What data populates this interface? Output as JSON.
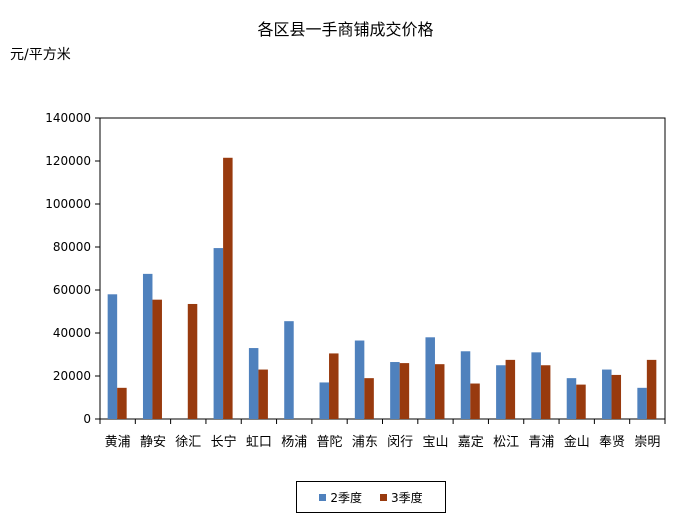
{
  "chart_data": {
    "type": "bar",
    "title": "各区县一手商铺成交价格",
    "ylabel": "元/平方米",
    "xlabel": "",
    "ylim": [
      0,
      140000
    ],
    "yticks": [
      0,
      20000,
      40000,
      60000,
      80000,
      100000,
      120000,
      140000
    ],
    "grid": false,
    "legend_position": "bottom",
    "categories": [
      "黄浦",
      "静安",
      "徐汇",
      "长宁",
      "虹口",
      "杨浦",
      "普陀",
      "浦东",
      "闵行",
      "宝山",
      "嘉定",
      "松江",
      "青浦",
      "金山",
      "奉贤",
      "崇明"
    ],
    "series": [
      {
        "name": "2季度",
        "color": "#4f81bd",
        "values": [
          58000,
          67500,
          0,
          79500,
          33000,
          45500,
          17000,
          36500,
          26500,
          38000,
          31500,
          25000,
          31000,
          19000,
          23000,
          14500
        ]
      },
      {
        "name": "3季度",
        "color": "#983a0e",
        "values": [
          14500,
          55500,
          53500,
          121500,
          23000,
          0,
          30500,
          19000,
          26000,
          25500,
          16500,
          27500,
          25000,
          16000,
          20500,
          27500
        ]
      }
    ]
  }
}
